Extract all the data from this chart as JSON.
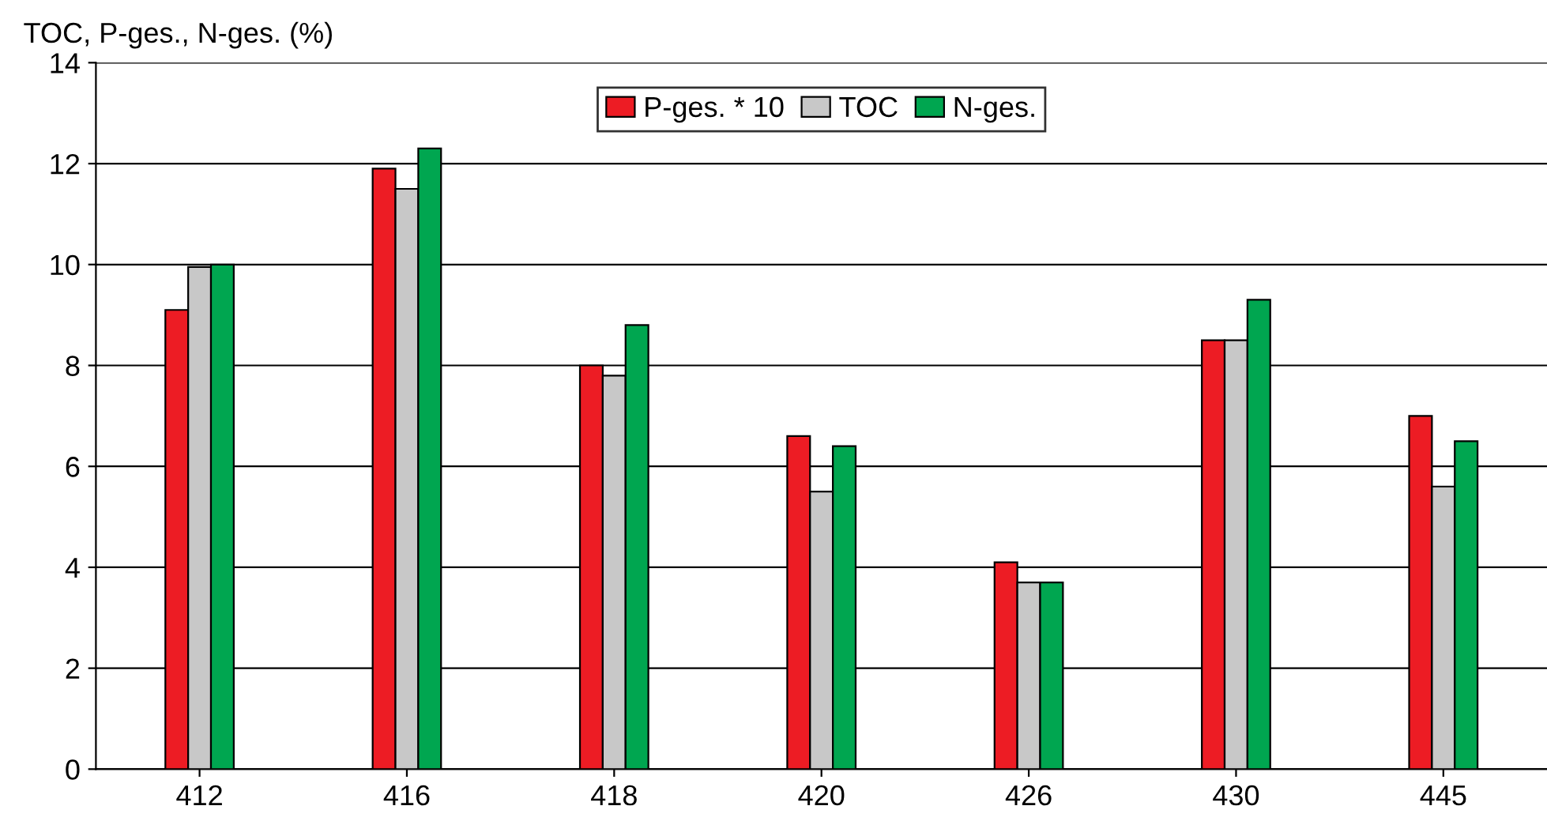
{
  "chart_data": {
    "type": "bar",
    "ylabel": "TOC, P-ges., N-ges. (%)",
    "categories": [
      "412",
      "416",
      "418",
      "420",
      "426",
      "430",
      "445"
    ],
    "series": [
      {
        "name": "P-ges. * 10",
        "color": "#ed1c24",
        "values": [
          9.1,
          11.9,
          8.0,
          6.6,
          4.1,
          8.5,
          7.0
        ]
      },
      {
        "name": "TOC",
        "color": "#c8c8c8",
        "values": [
          9.95,
          11.5,
          7.8,
          5.5,
          3.7,
          8.5,
          5.6
        ]
      },
      {
        "name": "N-ges.",
        "color": "#00a650",
        "values": [
          10.0,
          12.3,
          8.8,
          6.4,
          3.7,
          9.3,
          6.5
        ]
      }
    ],
    "ylim": [
      0,
      14
    ],
    "yticks": [
      0,
      2,
      4,
      6,
      8,
      10,
      12,
      14
    ],
    "grid": "y",
    "legend": "top"
  }
}
